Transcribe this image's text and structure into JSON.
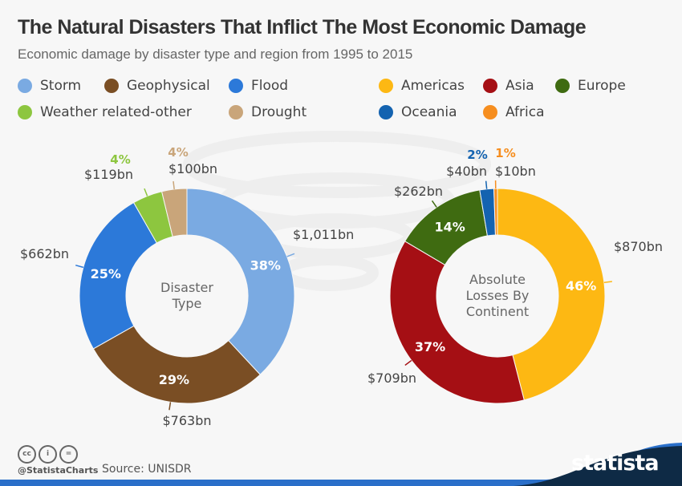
{
  "header": {
    "title": "The Natural Disasters That Inflict The Most Economic Damage",
    "subtitle": "Economic damage by disaster type and region from 1995 to 2015"
  },
  "chart_data": [
    {
      "type": "pie",
      "variant": "donut",
      "center_label": "Disaster Type",
      "unit": "$bn",
      "slices": [
        {
          "name": "Storm",
          "value": 1011,
          "value_label": "$1,011bn",
          "pct_label": "38%",
          "color": "#7aaae2"
        },
        {
          "name": "Geophysical",
          "value": 763,
          "value_label": "$763bn",
          "pct_label": "29%",
          "color": "#7a4e24"
        },
        {
          "name": "Flood",
          "value": 662,
          "value_label": "$662bn",
          "pct_label": "25%",
          "color": "#2c79d9"
        },
        {
          "name": "Weather related-other",
          "value": 119,
          "value_label": "$119bn",
          "pct_label": "4%",
          "color": "#8dc63f"
        },
        {
          "name": "Drought",
          "value": 100,
          "value_label": "$100bn",
          "pct_label": "4%",
          "color": "#c9a57a"
        }
      ]
    },
    {
      "type": "pie",
      "variant": "donut",
      "center_label": "Absolute Losses By Continent",
      "unit": "$bn",
      "slices": [
        {
          "name": "Americas",
          "value": 870,
          "value_label": "$870bn",
          "pct_label": "46%",
          "color": "#fdb813"
        },
        {
          "name": "Asia",
          "value": 709,
          "value_label": "$709bn",
          "pct_label": "37%",
          "color": "#a50f14"
        },
        {
          "name": "Europe",
          "value": 262,
          "value_label": "$262bn",
          "pct_label": "14%",
          "color": "#3f6b11"
        },
        {
          "name": "Oceania",
          "value": 40,
          "value_label": "$40bn",
          "pct_label": "2%",
          "color": "#1463b0"
        },
        {
          "name": "Africa",
          "value": 10,
          "value_label": "$10bn",
          "pct_label": "1%",
          "color": "#f68e1f"
        }
      ]
    }
  ],
  "footer": {
    "handle": "@StatistaCharts",
    "source": "Source:  UNISDR",
    "brand": "statista",
    "license_icons": [
      "cc",
      "by",
      "nd"
    ]
  }
}
